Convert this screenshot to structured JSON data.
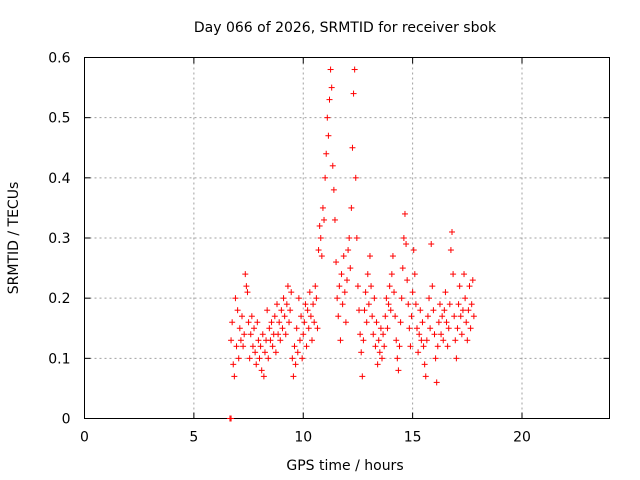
{
  "chart_data": {
    "type": "scatter",
    "title": "Day 066 of 2026, SRMTID for receiver sbok",
    "xlabel": "GPS time / hours",
    "ylabel": "SRMTID / TECUs",
    "xlim": [
      0,
      24
    ],
    "ylim": [
      0,
      0.6
    ],
    "xticks": [
      0,
      5,
      10,
      15,
      20
    ],
    "yticks": [
      0,
      0.1,
      0.2,
      0.3,
      0.4,
      0.5,
      0.6
    ],
    "xtick_labels": [
      "0",
      "5",
      "10",
      "15",
      "20"
    ],
    "ytick_labels": [
      "0",
      "0.1",
      "0.2",
      "0.3",
      "0.4",
      "0.5",
      "0.6"
    ],
    "grid": true,
    "marker": "+",
    "color": "#ff0000",
    "series": [
      {
        "name": "SRMTID",
        "points": [
          [
            6.65,
            0.0
          ],
          [
            6.7,
            0.0
          ],
          [
            6.7,
            0.13
          ],
          [
            6.75,
            0.16
          ],
          [
            6.8,
            0.09
          ],
          [
            6.85,
            0.07
          ],
          [
            6.9,
            0.2
          ],
          [
            6.95,
            0.12
          ],
          [
            7.0,
            0.18
          ],
          [
            7.05,
            0.1
          ],
          [
            7.1,
            0.15
          ],
          [
            7.15,
            0.13
          ],
          [
            7.2,
            0.17
          ],
          [
            7.25,
            0.12
          ],
          [
            7.3,
            0.14
          ],
          [
            7.35,
            0.24
          ],
          [
            7.4,
            0.22
          ],
          [
            7.45,
            0.21
          ],
          [
            7.5,
            0.16
          ],
          [
            7.55,
            0.1
          ],
          [
            7.6,
            0.14
          ],
          [
            7.65,
            0.17
          ],
          [
            7.7,
            0.12
          ],
          [
            7.75,
            0.15
          ],
          [
            7.8,
            0.11
          ],
          [
            7.85,
            0.09
          ],
          [
            7.9,
            0.16
          ],
          [
            7.95,
            0.13
          ],
          [
            8.0,
            0.1
          ],
          [
            8.05,
            0.12
          ],
          [
            8.1,
            0.08
          ],
          [
            8.15,
            0.14
          ],
          [
            8.2,
            0.07
          ],
          [
            8.25,
            0.11
          ],
          [
            8.3,
            0.13
          ],
          [
            8.35,
            0.18
          ],
          [
            8.4,
            0.1
          ],
          [
            8.45,
            0.15
          ],
          [
            8.5,
            0.13
          ],
          [
            8.55,
            0.16
          ],
          [
            8.6,
            0.12
          ],
          [
            8.65,
            0.14
          ],
          [
            8.7,
            0.17
          ],
          [
            8.75,
            0.11
          ],
          [
            8.8,
            0.19
          ],
          [
            8.85,
            0.14
          ],
          [
            8.9,
            0.16
          ],
          [
            8.95,
            0.13
          ],
          [
            9.0,
            0.18
          ],
          [
            9.05,
            0.15
          ],
          [
            9.1,
            0.2
          ],
          [
            9.15,
            0.17
          ],
          [
            9.2,
            0.14
          ],
          [
            9.25,
            0.19
          ],
          [
            9.3,
            0.22
          ],
          [
            9.35,
            0.16
          ],
          [
            9.4,
            0.18
          ],
          [
            9.45,
            0.21
          ],
          [
            9.5,
            0.1
          ],
          [
            9.55,
            0.07
          ],
          [
            9.6,
            0.12
          ],
          [
            9.65,
            0.09
          ],
          [
            9.7,
            0.15
          ],
          [
            9.75,
            0.11
          ],
          [
            9.8,
            0.2
          ],
          [
            9.85,
            0.13
          ],
          [
            9.9,
            0.17
          ],
          [
            9.95,
            0.1
          ],
          [
            10.0,
            0.14
          ],
          [
            10.05,
            0.16
          ],
          [
            10.1,
            0.19
          ],
          [
            10.15,
            0.12
          ],
          [
            10.2,
            0.18
          ],
          [
            10.25,
            0.15
          ],
          [
            10.3,
            0.21
          ],
          [
            10.35,
            0.17
          ],
          [
            10.4,
            0.13
          ],
          [
            10.45,
            0.19
          ],
          [
            10.5,
            0.16
          ],
          [
            10.55,
            0.22
          ],
          [
            10.6,
            0.2
          ],
          [
            10.65,
            0.15
          ],
          [
            10.7,
            0.28
          ],
          [
            10.75,
            0.32
          ],
          [
            10.8,
            0.3
          ],
          [
            10.85,
            0.27
          ],
          [
            10.9,
            0.35
          ],
          [
            10.95,
            0.33
          ],
          [
            11.0,
            0.4
          ],
          [
            11.05,
            0.44
          ],
          [
            11.1,
            0.5
          ],
          [
            11.15,
            0.47
          ],
          [
            11.2,
            0.53
          ],
          [
            11.25,
            0.58
          ],
          [
            11.3,
            0.55
          ],
          [
            11.35,
            0.42
          ],
          [
            11.4,
            0.38
          ],
          [
            11.45,
            0.33
          ],
          [
            11.5,
            0.26
          ],
          [
            11.55,
            0.2
          ],
          [
            11.6,
            0.17
          ],
          [
            11.65,
            0.22
          ],
          [
            11.7,
            0.13
          ],
          [
            11.75,
            0.24
          ],
          [
            11.8,
            0.19
          ],
          [
            11.85,
            0.27
          ],
          [
            11.9,
            0.21
          ],
          [
            11.95,
            0.16
          ],
          [
            12.0,
            0.23
          ],
          [
            12.05,
            0.28
          ],
          [
            12.1,
            0.3
          ],
          [
            12.15,
            0.25
          ],
          [
            12.2,
            0.35
          ],
          [
            12.25,
            0.45
          ],
          [
            12.3,
            0.54
          ],
          [
            12.35,
            0.58
          ],
          [
            12.4,
            0.4
          ],
          [
            12.45,
            0.3
          ],
          [
            12.5,
            0.22
          ],
          [
            12.55,
            0.18
          ],
          [
            12.6,
            0.14
          ],
          [
            12.65,
            0.11
          ],
          [
            12.7,
            0.07
          ],
          [
            12.75,
            0.13
          ],
          [
            12.8,
            0.18
          ],
          [
            12.85,
            0.21
          ],
          [
            12.9,
            0.16
          ],
          [
            12.95,
            0.24
          ],
          [
            13.0,
            0.19
          ],
          [
            13.05,
            0.27
          ],
          [
            13.1,
            0.22
          ],
          [
            13.15,
            0.17
          ],
          [
            13.2,
            0.14
          ],
          [
            13.25,
            0.2
          ],
          [
            13.3,
            0.12
          ],
          [
            13.35,
            0.16
          ],
          [
            13.4,
            0.09
          ],
          [
            13.45,
            0.13
          ],
          [
            13.5,
            0.11
          ],
          [
            13.55,
            0.15
          ],
          [
            13.6,
            0.1
          ],
          [
            13.65,
            0.14
          ],
          [
            13.7,
            0.12
          ],
          [
            13.75,
            0.17
          ],
          [
            13.8,
            0.2
          ],
          [
            13.85,
            0.15
          ],
          [
            13.9,
            0.19
          ],
          [
            13.95,
            0.22
          ],
          [
            14.0,
            0.18
          ],
          [
            14.05,
            0.24
          ],
          [
            14.1,
            0.27
          ],
          [
            14.15,
            0.21
          ],
          [
            14.2,
            0.17
          ],
          [
            14.25,
            0.13
          ],
          [
            14.3,
            0.1
          ],
          [
            14.35,
            0.08
          ],
          [
            14.4,
            0.12
          ],
          [
            14.45,
            0.16
          ],
          [
            14.5,
            0.2
          ],
          [
            14.55,
            0.25
          ],
          [
            14.6,
            0.3
          ],
          [
            14.65,
            0.34
          ],
          [
            14.7,
            0.29
          ],
          [
            14.75,
            0.23
          ],
          [
            14.8,
            0.19
          ],
          [
            14.85,
            0.15
          ],
          [
            14.9,
            0.12
          ],
          [
            14.95,
            0.17
          ],
          [
            15.0,
            0.21
          ],
          [
            15.05,
            0.28
          ],
          [
            15.1,
            0.24
          ],
          [
            15.15,
            0.19
          ],
          [
            15.2,
            0.15
          ],
          [
            15.25,
            0.11
          ],
          [
            15.3,
            0.14
          ],
          [
            15.35,
            0.18
          ],
          [
            15.4,
            0.13
          ],
          [
            15.45,
            0.16
          ],
          [
            15.5,
            0.12
          ],
          [
            15.55,
            0.09
          ],
          [
            15.6,
            0.07
          ],
          [
            15.65,
            0.13
          ],
          [
            15.7,
            0.17
          ],
          [
            15.75,
            0.2
          ],
          [
            15.8,
            0.15
          ],
          [
            15.85,
            0.29
          ],
          [
            15.9,
            0.22
          ],
          [
            15.95,
            0.18
          ],
          [
            16.0,
            0.14
          ],
          [
            16.05,
            0.1
          ],
          [
            16.1,
            0.06
          ],
          [
            16.15,
            0.12
          ],
          [
            16.2,
            0.16
          ],
          [
            16.25,
            0.19
          ],
          [
            16.3,
            0.14
          ],
          [
            16.35,
            0.17
          ],
          [
            16.4,
            0.13
          ],
          [
            16.45,
            0.18
          ],
          [
            16.5,
            0.21
          ],
          [
            16.55,
            0.16
          ],
          [
            16.6,
            0.12
          ],
          [
            16.65,
            0.15
          ],
          [
            16.7,
            0.19
          ],
          [
            16.75,
            0.28
          ],
          [
            16.8,
            0.31
          ],
          [
            16.85,
            0.24
          ],
          [
            16.9,
            0.17
          ],
          [
            16.95,
            0.13
          ],
          [
            17.0,
            0.1
          ],
          [
            17.05,
            0.15
          ],
          [
            17.1,
            0.19
          ],
          [
            17.15,
            0.22
          ],
          [
            17.2,
            0.17
          ],
          [
            17.25,
            0.14
          ],
          [
            17.3,
            0.18
          ],
          [
            17.35,
            0.24
          ],
          [
            17.4,
            0.2
          ],
          [
            17.45,
            0.16
          ],
          [
            17.5,
            0.13
          ],
          [
            17.55,
            0.18
          ],
          [
            17.6,
            0.22
          ],
          [
            17.65,
            0.15
          ],
          [
            17.7,
            0.19
          ],
          [
            17.75,
            0.23
          ],
          [
            17.8,
            0.17
          ]
        ]
      }
    ]
  }
}
